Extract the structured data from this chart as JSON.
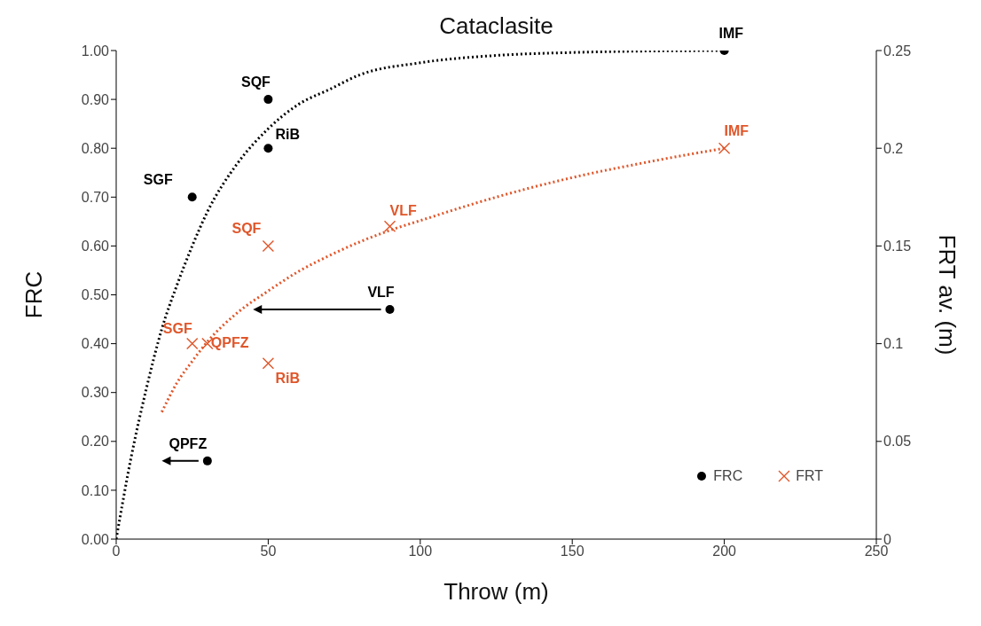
{
  "chart_data": {
    "type": "scatter",
    "title": "Cataclasite",
    "xlabel": "Throw (m)",
    "ylabel": "FRC",
    "y2label": "FRT av. (m)",
    "xlim": [
      0,
      250
    ],
    "xticks": [
      0,
      50,
      100,
      150,
      200,
      250
    ],
    "ylim": [
      0,
      1
    ],
    "yticks": [
      {
        "value": 0,
        "label": "0.00"
      },
      {
        "value": 0.1,
        "label": "0.10"
      },
      {
        "value": 0.2,
        "label": "0.20"
      },
      {
        "value": 0.3,
        "label": "0.30"
      },
      {
        "value": 0.4,
        "label": "0.40"
      },
      {
        "value": 0.5,
        "label": "0.50"
      },
      {
        "value": 0.6,
        "label": "0.60"
      },
      {
        "value": 0.7,
        "label": "0.70"
      },
      {
        "value": 0.8,
        "label": "0.80"
      },
      {
        "value": 0.9,
        "label": "0.90"
      },
      {
        "value": 1,
        "label": "1.00"
      }
    ],
    "y2lim": [
      0,
      0.25
    ],
    "y2ticks": [
      0,
      0.05,
      0.1,
      0.15,
      0.2,
      0.25
    ],
    "grid": false,
    "legend": "bottom right",
    "series": [
      {
        "name": "FRC",
        "marker": "circle",
        "color": "#000000",
        "x": [
          25,
          30,
          50,
          50,
          90,
          200
        ],
        "values": [
          0.7,
          0.16,
          0.9,
          0.8,
          0.47,
          1.0
        ],
        "value_labels": [
          "SGF",
          "QPFZ",
          "SQF",
          "RiB",
          "VLF",
          "IMF"
        ]
      },
      {
        "name": "FRT",
        "marker": "cross",
        "axis": "y2",
        "color": "#e0562a",
        "x": [
          25,
          30,
          50,
          50,
          90,
          200
        ],
        "values": [
          0.1,
          0.1,
          0.15,
          0.09,
          0.16,
          0.2
        ],
        "value_labels": [
          "SGF",
          "QPFZ",
          "SQF",
          "RiB",
          "VLF",
          "IMF"
        ]
      },
      {
        "type": "line",
        "marker": "none",
        "line_style": "dotted",
        "color": "#000000",
        "x": [
          0,
          5,
          10,
          15,
          20,
          25,
          30,
          40,
          50,
          60,
          70,
          80,
          100,
          125,
          150,
          175,
          200
        ],
        "values": [
          0,
          0.17,
          0.31,
          0.43,
          0.52,
          0.6,
          0.67,
          0.77,
          0.84,
          0.89,
          0.92,
          0.95,
          0.975,
          0.99,
          0.996,
          0.999,
          1.0
        ]
      },
      {
        "type": "line",
        "marker": "none",
        "line_style": "dotted",
        "axis": "y2",
        "color": "#e0562a",
        "x": [
          15,
          20,
          25,
          30,
          40,
          50,
          60,
          70,
          80,
          90,
          100,
          125,
          150,
          175,
          200
        ],
        "values": [
          0.065,
          0.08,
          0.091,
          0.101,
          0.116,
          0.127,
          0.137,
          0.145,
          0.152,
          0.158,
          0.163,
          0.175,
          0.185,
          0.193,
          0.2
        ]
      }
    ]
  }
}
